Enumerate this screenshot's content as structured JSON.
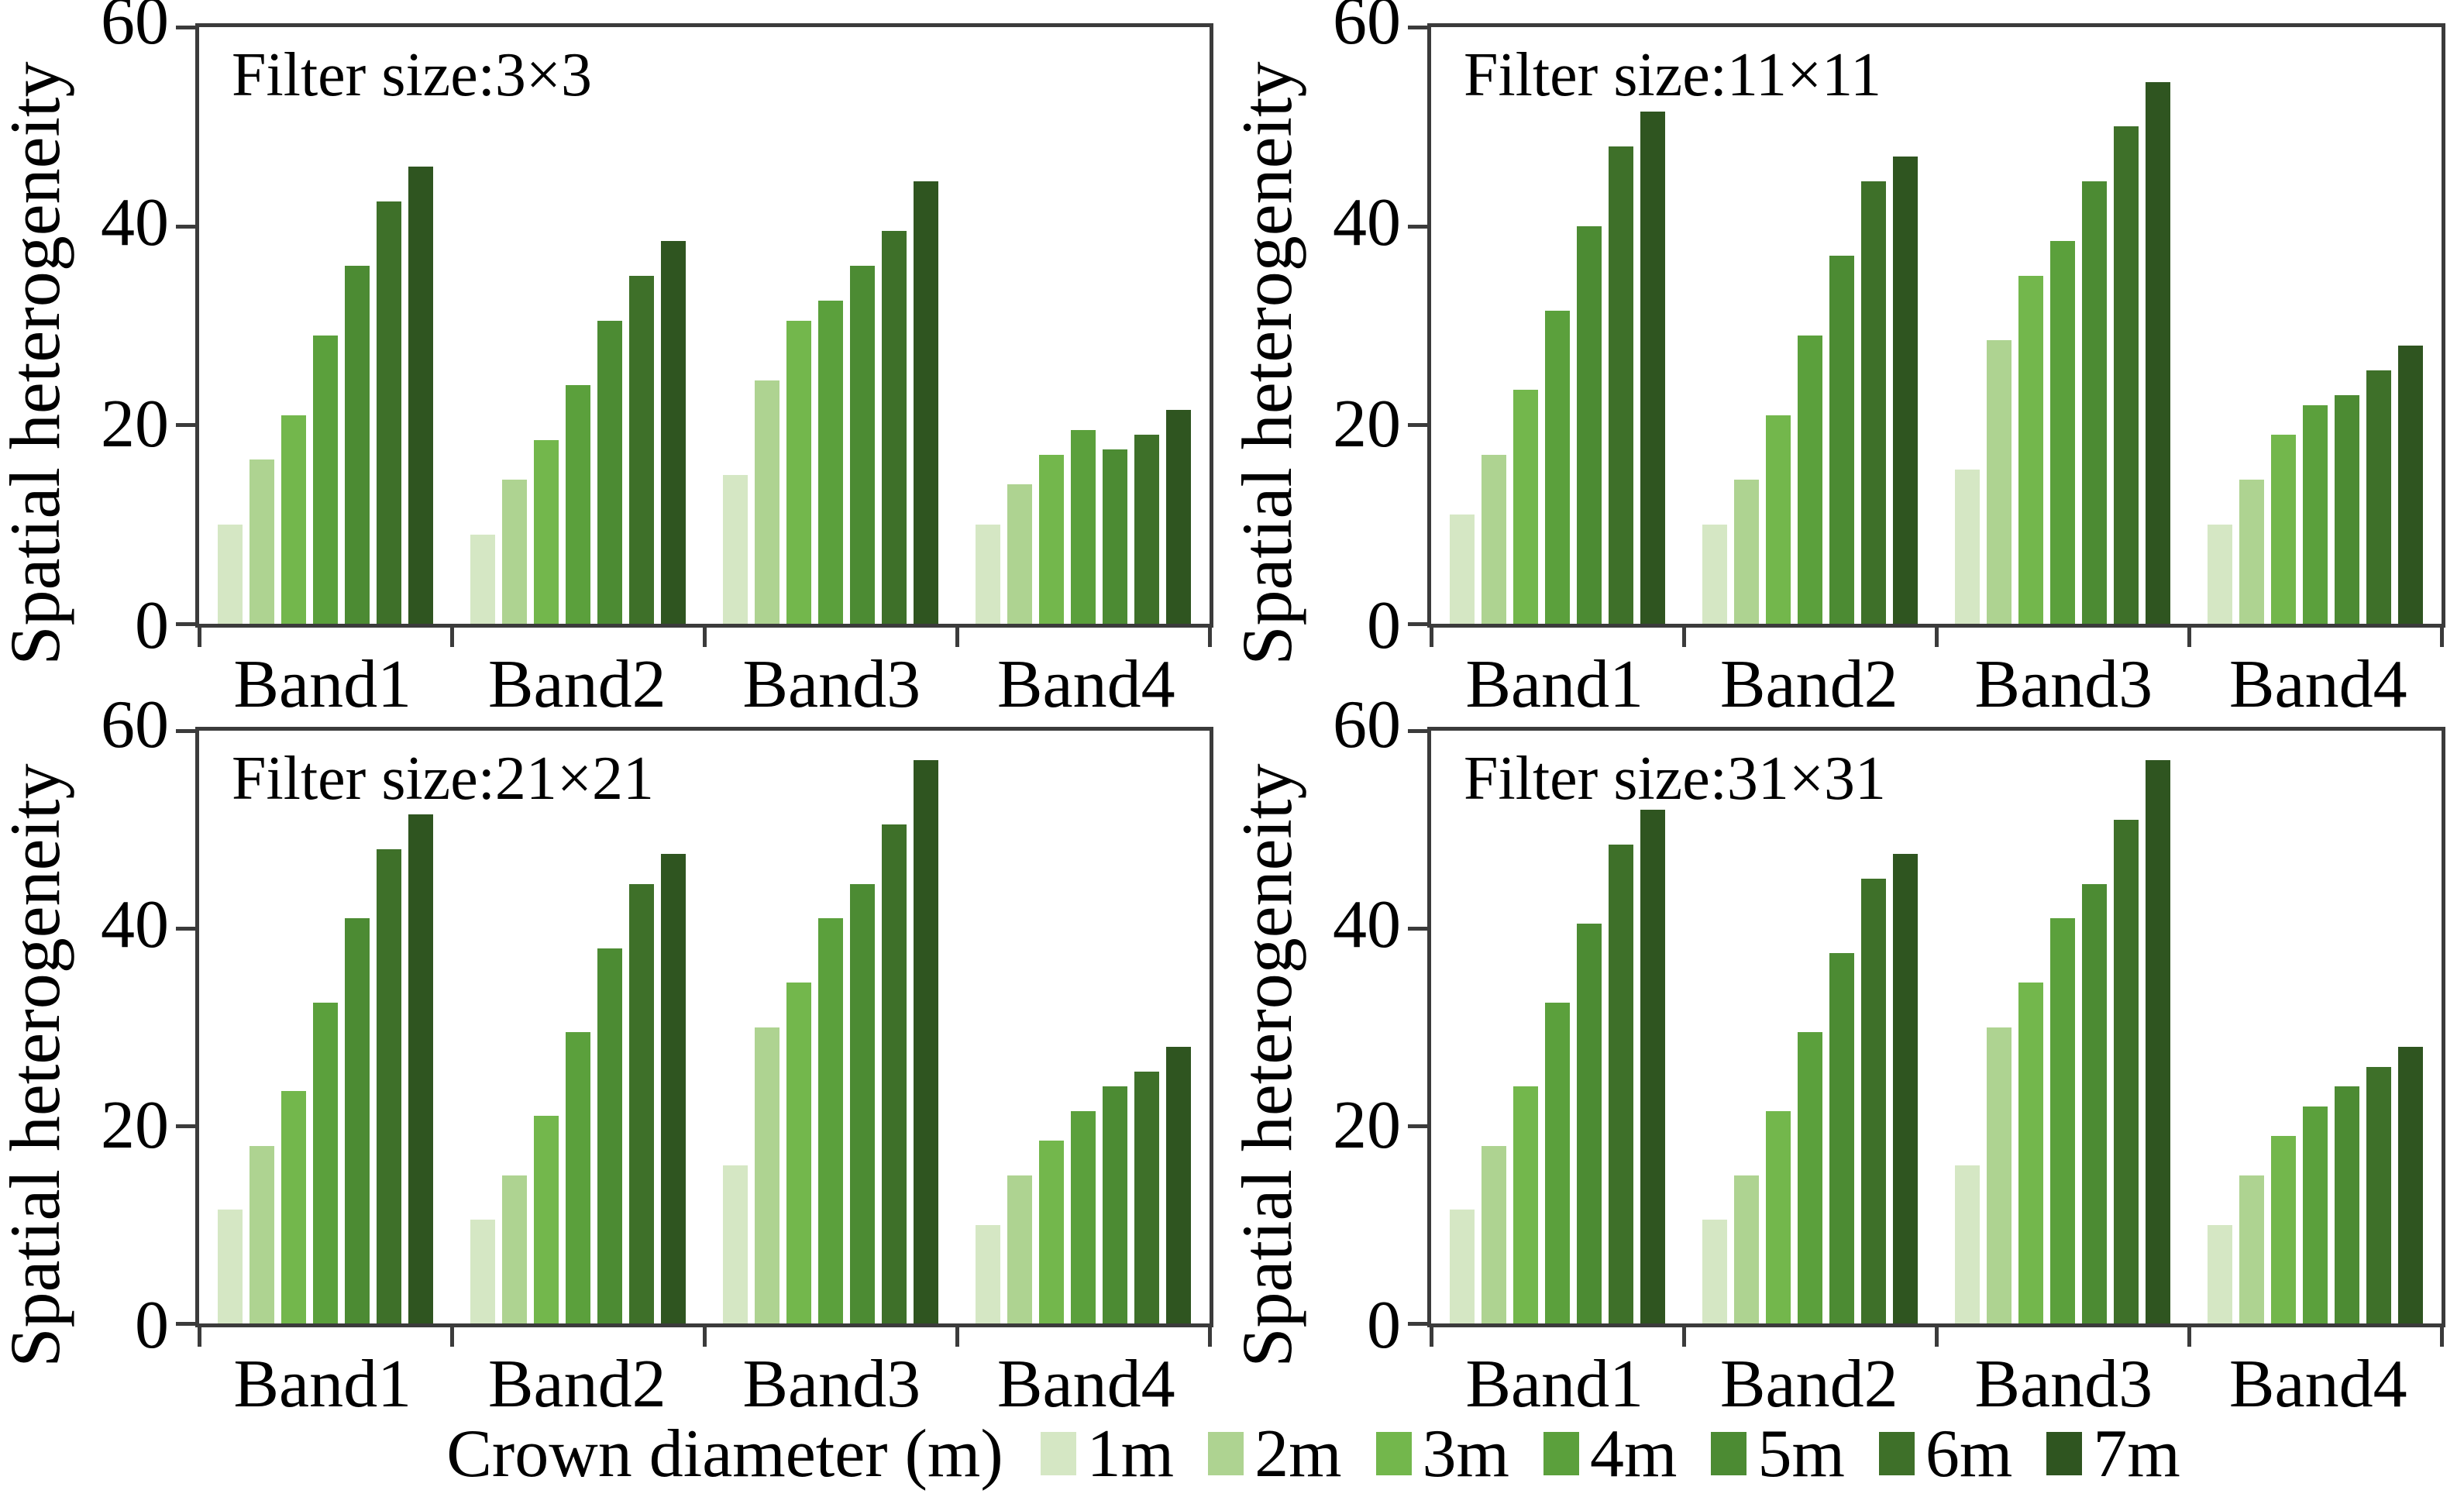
{
  "figure": {
    "y_axis_label": "Spatial heterogeneity",
    "y_max": 60,
    "y_ticks": [
      60,
      40,
      20,
      0
    ],
    "legend_title": "Crown diameter (m)",
    "series_labels": [
      "1m",
      "2m",
      "3m",
      "4m",
      "5m",
      "6m",
      "7m"
    ],
    "series_colors": [
      "#d5e7c4",
      "#aed391",
      "#73b74c",
      "#5ba03c",
      "#4c8b33",
      "#3e7029",
      "#2f5520"
    ],
    "axis_color": "#3b3b3b"
  },
  "chart_data": [
    {
      "type": "bar",
      "title": "Filter size:3×3",
      "categories": [
        "Band1",
        "Band2",
        "Band3",
        "Band4"
      ],
      "xlabel": "",
      "ylabel": "Spatial heterogeneity",
      "ylim": [
        0,
        60
      ],
      "grid": false,
      "legend_position": "bottom",
      "series": [
        {
          "name": "1m",
          "values": [
            10,
            9,
            15,
            10
          ]
        },
        {
          "name": "2m",
          "values": [
            16.5,
            14.5,
            24.5,
            14
          ]
        },
        {
          "name": "3m",
          "values": [
            21,
            18.5,
            30.5,
            17
          ]
        },
        {
          "name": "4m",
          "values": [
            29,
            24,
            32.5,
            19.5
          ]
        },
        {
          "name": "5m",
          "values": [
            36,
            30.5,
            36,
            17.5
          ]
        },
        {
          "name": "6m",
          "values": [
            42.5,
            35,
            39.5,
            19
          ]
        },
        {
          "name": "7m",
          "values": [
            46,
            38.5,
            44.5,
            21.5
          ]
        }
      ]
    },
    {
      "type": "bar",
      "title": "Filter size:11×11",
      "categories": [
        "Band1",
        "Band2",
        "Band3",
        "Band4"
      ],
      "xlabel": "",
      "ylabel": "Spatial heterogeneity",
      "ylim": [
        0,
        60
      ],
      "grid": false,
      "legend_position": "bottom",
      "series": [
        {
          "name": "1m",
          "values": [
            11,
            10,
            15.5,
            10
          ]
        },
        {
          "name": "2m",
          "values": [
            17,
            14.5,
            28.5,
            14.5
          ]
        },
        {
          "name": "3m",
          "values": [
            23.5,
            21,
            35,
            19
          ]
        },
        {
          "name": "4m",
          "values": [
            31.5,
            29,
            38.5,
            22
          ]
        },
        {
          "name": "5m",
          "values": [
            40,
            37,
            44.5,
            23
          ]
        },
        {
          "name": "6m",
          "values": [
            48,
            44.5,
            50,
            25.5
          ]
        },
        {
          "name": "7m",
          "values": [
            51.5,
            47,
            54.5,
            28
          ]
        }
      ]
    },
    {
      "type": "bar",
      "title": "Filter size:21×21",
      "categories": [
        "Band1",
        "Band2",
        "Band3",
        "Band4"
      ],
      "xlabel": "",
      "ylabel": "Spatial heterogeneity",
      "ylim": [
        0,
        60
      ],
      "grid": false,
      "legend_position": "bottom",
      "series": [
        {
          "name": "1m",
          "values": [
            11.5,
            10.5,
            16,
            10
          ]
        },
        {
          "name": "2m",
          "values": [
            18,
            15,
            30,
            15
          ]
        },
        {
          "name": "3m",
          "values": [
            23.5,
            21,
            34.5,
            18.5
          ]
        },
        {
          "name": "4m",
          "values": [
            32.5,
            29.5,
            41,
            21.5
          ]
        },
        {
          "name": "5m",
          "values": [
            41,
            38,
            44.5,
            24
          ]
        },
        {
          "name": "6m",
          "values": [
            48,
            44.5,
            50.5,
            25.5
          ]
        },
        {
          "name": "7m",
          "values": [
            51.5,
            47.5,
            57,
            28
          ]
        }
      ]
    },
    {
      "type": "bar",
      "title": "Filter size:31×31",
      "categories": [
        "Band1",
        "Band2",
        "Band3",
        "Band4"
      ],
      "xlabel": "",
      "ylabel": "Spatial heterogeneity",
      "ylim": [
        0,
        60
      ],
      "grid": false,
      "legend_position": "bottom",
      "series": [
        {
          "name": "1m",
          "values": [
            11.5,
            10.5,
            16,
            10
          ]
        },
        {
          "name": "2m",
          "values": [
            18,
            15,
            30,
            15
          ]
        },
        {
          "name": "3m",
          "values": [
            24,
            21.5,
            34.5,
            19
          ]
        },
        {
          "name": "4m",
          "values": [
            32.5,
            29.5,
            41,
            22
          ]
        },
        {
          "name": "5m",
          "values": [
            40.5,
            37.5,
            44.5,
            24
          ]
        },
        {
          "name": "6m",
          "values": [
            48.5,
            45,
            51,
            26
          ]
        },
        {
          "name": "7m",
          "values": [
            52,
            47.5,
            57,
            28
          ]
        }
      ]
    }
  ]
}
